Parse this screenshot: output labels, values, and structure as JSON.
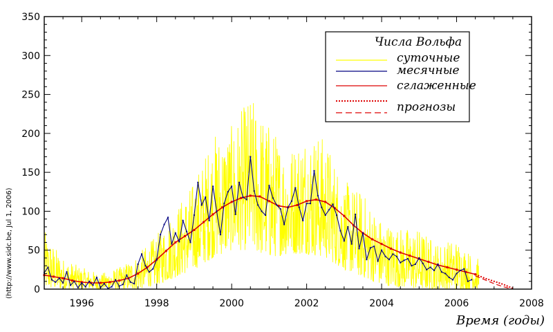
{
  "chart_data": {
    "type": "line",
    "title": "",
    "xlabel": "Время (годы)",
    "ylabel": "",
    "xlim": [
      1995,
      2008
    ],
    "ylim": [
      0,
      350
    ],
    "x_ticks": [
      1996,
      1998,
      2000,
      2002,
      2004,
      2006,
      2008
    ],
    "y_ticks": [
      0,
      50,
      100,
      150,
      200,
      250,
      300,
      350
    ],
    "credit": "(http://www.sidc.be, Jul  1, 2006)",
    "legend": {
      "title": "Числа Вольфа",
      "position": "top-right",
      "entries": [
        {
          "label": "суточные",
          "series": "daily"
        },
        {
          "label": "месячные",
          "series": "monthly"
        },
        {
          "label": "сглаженные",
          "series": "smoothed"
        },
        {
          "label": "прогнозы",
          "series": "forecast"
        }
      ]
    },
    "colors": {
      "daily": "#ffff00",
      "monthly": "#000080",
      "monthly_marker": "#000080",
      "smoothed": "#dd0000",
      "smoothed_marker": "#dd0000",
      "forecast": "#dd0000",
      "axes": "#000000"
    },
    "series": [
      {
        "name": "monthly",
        "style": "solid-with-markers",
        "x": [
          1995.0,
          1995.1,
          1995.2,
          1995.3,
          1995.4,
          1995.5,
          1995.6,
          1995.7,
          1995.8,
          1995.9,
          1996.0,
          1996.1,
          1996.2,
          1996.3,
          1996.4,
          1996.5,
          1996.6,
          1996.7,
          1996.8,
          1996.9,
          1997.0,
          1997.1,
          1997.2,
          1997.3,
          1997.4,
          1997.5,
          1997.6,
          1997.7,
          1997.8,
          1997.9,
          1998.0,
          1998.1,
          1998.2,
          1998.3,
          1998.4,
          1998.5,
          1998.6,
          1998.7,
          1998.8,
          1998.9,
          1999.0,
          1999.1,
          1999.2,
          1999.3,
          1999.4,
          1999.5,
          1999.6,
          1999.7,
          1999.8,
          1999.9,
          2000.0,
          2000.1,
          2000.2,
          2000.3,
          2000.4,
          2000.5,
          2000.6,
          2000.7,
          2000.8,
          2000.9,
          2001.0,
          2001.1,
          2001.2,
          2001.3,
          2001.4,
          2001.5,
          2001.6,
          2001.7,
          2001.8,
          2001.9,
          2002.0,
          2002.1,
          2002.2,
          2002.3,
          2002.4,
          2002.5,
          2002.6,
          2002.7,
          2002.8,
          2002.9,
          2003.0,
          2003.1,
          2003.2,
          2003.3,
          2003.4,
          2003.5,
          2003.6,
          2003.7,
          2003.8,
          2003.9,
          2004.0,
          2004.1,
          2004.2,
          2004.3,
          2004.4,
          2004.5,
          2004.6,
          2004.7,
          2004.8,
          2004.9,
          2005.0,
          2005.1,
          2005.2,
          2005.3,
          2005.4,
          2005.5,
          2005.6,
          2005.7,
          2005.8,
          2005.9,
          2006.0,
          2006.1,
          2006.2,
          2006.3,
          2006.4
        ],
        "values": [
          21,
          28,
          12,
          9,
          14,
          8,
          22,
          5,
          10,
          2,
          8,
          3,
          10,
          5,
          15,
          2,
          7,
          1,
          3,
          12,
          4,
          6,
          18,
          9,
          7,
          32,
          45,
          30,
          22,
          26,
          38,
          70,
          83,
          92,
          58,
          72,
          61,
          88,
          74,
          60,
          95,
          137,
          108,
          118,
          88,
          132,
          100,
          70,
          110,
          125,
          132,
          96,
          137,
          118,
          115,
          170,
          126,
          108,
          100,
          95,
          133,
          117,
          108,
          103,
          83,
          105,
          113,
          130,
          105,
          88,
          110,
          110,
          152,
          120,
          105,
          95,
          102,
          109,
          95,
          75,
          62,
          80,
          58,
          96,
          52,
          72,
          38,
          53,
          55,
          36,
          50,
          42,
          38,
          45,
          42,
          34,
          37,
          39,
          30,
          32,
          40,
          33,
          25,
          28,
          24,
          32,
          22,
          20,
          15,
          12,
          20,
          24,
          26,
          10,
          12
        ]
      },
      {
        "name": "smoothed",
        "style": "solid-with-markers",
        "x": [
          1995.0,
          1995.25,
          1995.5,
          1995.75,
          1996.0,
          1996.25,
          1996.5,
          1996.75,
          1997.0,
          1997.25,
          1997.5,
          1997.75,
          1998.0,
          1998.25,
          1998.5,
          1998.75,
          1999.0,
          1999.25,
          1999.5,
          1999.75,
          2000.0,
          2000.25,
          2000.5,
          2000.75,
          2001.0,
          2001.25,
          2001.5,
          2001.75,
          2002.0,
          2002.25,
          2002.5,
          2002.75,
          2003.0,
          2003.25,
          2003.5,
          2003.75,
          2004.0,
          2004.25,
          2004.5,
          2004.75,
          2005.0,
          2005.25,
          2005.5,
          2005.75,
          2006.0,
          2006.25,
          2006.5
        ],
        "values": [
          18,
          16,
          14,
          11,
          9,
          8,
          8,
          9,
          11,
          14,
          20,
          28,
          38,
          49,
          60,
          68,
          76,
          86,
          96,
          105,
          112,
          117,
          120,
          119,
          113,
          107,
          105,
          108,
          113,
          115,
          112,
          104,
          94,
          82,
          72,
          64,
          58,
          52,
          47,
          43,
          39,
          35,
          31,
          28,
          25,
          22,
          19
        ]
      },
      {
        "name": "forecast",
        "style": "dotted",
        "x": [
          2006.5,
          2006.75,
          2007.0,
          2007.25,
          2007.5
        ],
        "values": [
          19,
          14,
          10,
          6,
          1
        ]
      },
      {
        "name": "forecast-range",
        "style": "dashed",
        "x": [
          2006.5,
          2006.75,
          2007.0,
          2007.25,
          2007.5
        ],
        "values": [
          17,
          12,
          7,
          3,
          0
        ]
      }
    ],
    "daily_envelope": {
      "description": "daily sunspot numbers; noisy series bounded by the envelopes below",
      "x": [
        1995.0,
        1995.5,
        1996.0,
        1996.5,
        1997.0,
        1997.5,
        1998.0,
        1998.5,
        1999.0,
        1999.5,
        2000.0,
        2000.5,
        2001.0,
        2001.5,
        2002.0,
        2002.5,
        2003.0,
        2003.5,
        2004.0,
        2004.5,
        2005.0,
        2005.5,
        2006.0,
        2006.5
      ],
      "lower": [
        0,
        0,
        0,
        0,
        0,
        0,
        5,
        15,
        25,
        40,
        50,
        50,
        40,
        45,
        45,
        40,
        25,
        15,
        5,
        2,
        0,
        0,
        0,
        0
      ],
      "upper": [
        75,
        40,
        28,
        20,
        28,
        45,
        70,
        105,
        140,
        200,
        210,
        250,
        215,
        180,
        210,
        195,
        140,
        125,
        90,
        80,
        78,
        60,
        65,
        40
      ]
    }
  }
}
